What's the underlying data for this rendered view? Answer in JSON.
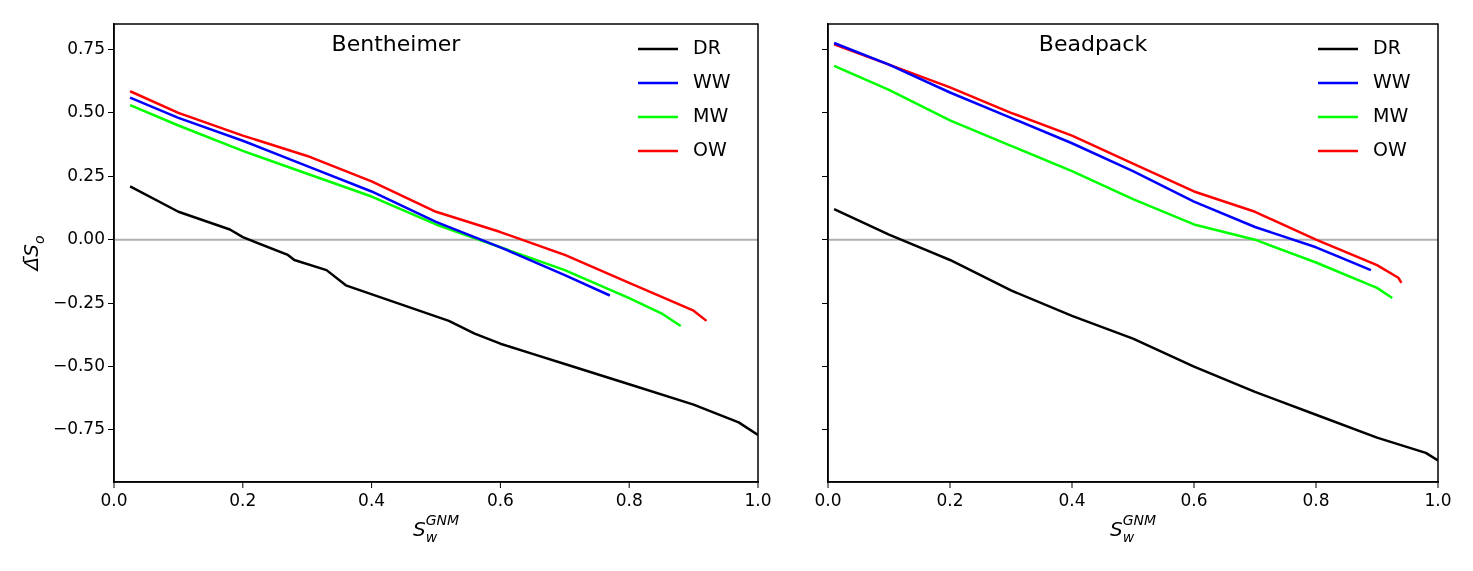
{
  "chart_data": [
    {
      "type": "line",
      "title": "Bentheimer",
      "xlabel": "S$_{w}$$^{GNM}$",
      "ylabel": "Δ̄S$_{o}$",
      "xlim": [
        0,
        1
      ],
      "ylim": [
        -0.955,
        0.85
      ],
      "xticks": [
        {
          "value": 0,
          "label": "0.0"
        },
        {
          "value": 0.2,
          "label": "0.2"
        },
        {
          "value": 0.4,
          "label": "0.4"
        },
        {
          "value": 0.6,
          "label": "0.6"
        },
        {
          "value": 0.8,
          "label": "0.8"
        },
        {
          "value": 1,
          "label": "1.0"
        }
      ],
      "yticks": [
        {
          "value": -0.75,
          "label": "−0.75"
        },
        {
          "value": -0.5,
          "label": "−0.50"
        },
        {
          "value": -0.25,
          "label": "−0.25"
        },
        {
          "value": 0,
          "label": "0.00"
        },
        {
          "value": 0.25,
          "label": "0.25"
        },
        {
          "value": 0.5,
          "label": "0.50"
        },
        {
          "value": 0.75,
          "label": "0.75"
        }
      ],
      "grid": false,
      "legend": "top right",
      "marker": "none",
      "line_style": "solid",
      "ref_lines": [
        {
          "axis": "y",
          "value": 0,
          "color": "#b0b0b0"
        }
      ],
      "series": [
        {
          "name": "DR",
          "color": "#000000",
          "x": [
            0.025,
            0.1,
            0.18,
            0.2,
            0.27,
            0.28,
            0.33,
            0.36,
            0.44,
            0.52,
            0.56,
            0.6,
            0.65,
            0.7,
            0.8,
            0.9,
            0.97,
            1.0
          ],
          "values": [
            0.21,
            0.11,
            0.04,
            0.01,
            -0.06,
            -0.08,
            -0.12,
            -0.18,
            -0.25,
            -0.32,
            -0.37,
            -0.41,
            -0.45,
            -0.49,
            -0.57,
            -0.65,
            -0.72,
            -0.77
          ]
        },
        {
          "name": "WW",
          "color": "#0000ff",
          "x": [
            0.025,
            0.1,
            0.2,
            0.3,
            0.4,
            0.5,
            0.6,
            0.7,
            0.77
          ],
          "values": [
            0.56,
            0.48,
            0.39,
            0.29,
            0.19,
            0.07,
            -0.03,
            -0.14,
            -0.22
          ]
        },
        {
          "name": "MW",
          "color": "#00ff00",
          "x": [
            0.025,
            0.1,
            0.2,
            0.3,
            0.4,
            0.5,
            0.6,
            0.7,
            0.8,
            0.85,
            0.88
          ],
          "values": [
            0.53,
            0.45,
            0.35,
            0.26,
            0.17,
            0.06,
            -0.03,
            -0.12,
            -0.23,
            -0.29,
            -0.34
          ]
        },
        {
          "name": "OW",
          "color": "#ff0000",
          "x": [
            0.025,
            0.1,
            0.2,
            0.3,
            0.4,
            0.5,
            0.6,
            0.7,
            0.8,
            0.9,
            0.92
          ],
          "values": [
            0.585,
            0.5,
            0.41,
            0.33,
            0.23,
            0.11,
            0.03,
            -0.06,
            -0.17,
            -0.28,
            -0.32
          ]
        }
      ]
    },
    {
      "type": "line",
      "title": "Beadpack",
      "xlabel": "S$_{w}$$^{GNM}$",
      "xlim": [
        0,
        1
      ],
      "ylim": [
        -0.955,
        0.85
      ],
      "tick_labels": "x",
      "xticks": [
        {
          "value": 0,
          "label": "0.0"
        },
        {
          "value": 0.2,
          "label": "0.2"
        },
        {
          "value": 0.4,
          "label": "0.4"
        },
        {
          "value": 0.6,
          "label": "0.6"
        },
        {
          "value": 0.8,
          "label": "0.8"
        },
        {
          "value": 1,
          "label": "1.0"
        }
      ],
      "yticks": [
        {
          "value": -0.75,
          "label": null
        },
        {
          "value": -0.5,
          "label": null
        },
        {
          "value": -0.25,
          "label": null
        },
        {
          "value": 0,
          "label": null
        },
        {
          "value": 0.25,
          "label": null
        },
        {
          "value": 0.5,
          "label": null
        },
        {
          "value": 0.75,
          "label": null
        }
      ],
      "grid": false,
      "legend": "top right",
      "marker": "none",
      "line_style": "solid",
      "ref_lines": [
        {
          "axis": "y",
          "value": 0,
          "color": "#b0b0b0"
        }
      ],
      "series": [
        {
          "name": "DR",
          "color": "#000000",
          "x": [
            0.01,
            0.1,
            0.2,
            0.3,
            0.4,
            0.5,
            0.6,
            0.7,
            0.8,
            0.9,
            0.98,
            1.0
          ],
          "values": [
            0.12,
            0.02,
            -0.08,
            -0.2,
            -0.3,
            -0.39,
            -0.5,
            -0.6,
            -0.69,
            -0.78,
            -0.84,
            -0.87
          ]
        },
        {
          "name": "WW",
          "color": "#0000ff",
          "x": [
            0.01,
            0.1,
            0.2,
            0.3,
            0.4,
            0.5,
            0.6,
            0.7,
            0.8,
            0.89
          ],
          "values": [
            0.775,
            0.69,
            0.58,
            0.48,
            0.38,
            0.27,
            0.15,
            0.05,
            -0.03,
            -0.12
          ]
        },
        {
          "name": "MW",
          "color": "#00ff00",
          "x": [
            0.01,
            0.1,
            0.2,
            0.3,
            0.4,
            0.5,
            0.6,
            0.7,
            0.8,
            0.9,
            0.925
          ],
          "values": [
            0.685,
            0.59,
            0.47,
            0.37,
            0.27,
            0.16,
            0.06,
            0.0,
            -0.09,
            -0.19,
            -0.23
          ]
        },
        {
          "name": "OW",
          "color": "#ff0000",
          "x": [
            0.01,
            0.1,
            0.2,
            0.3,
            0.4,
            0.5,
            0.6,
            0.7,
            0.8,
            0.9,
            0.935,
            0.94
          ],
          "values": [
            0.77,
            0.69,
            0.6,
            0.5,
            0.41,
            0.3,
            0.19,
            0.11,
            0.0,
            -0.1,
            -0.15,
            -0.17
          ]
        }
      ]
    }
  ]
}
